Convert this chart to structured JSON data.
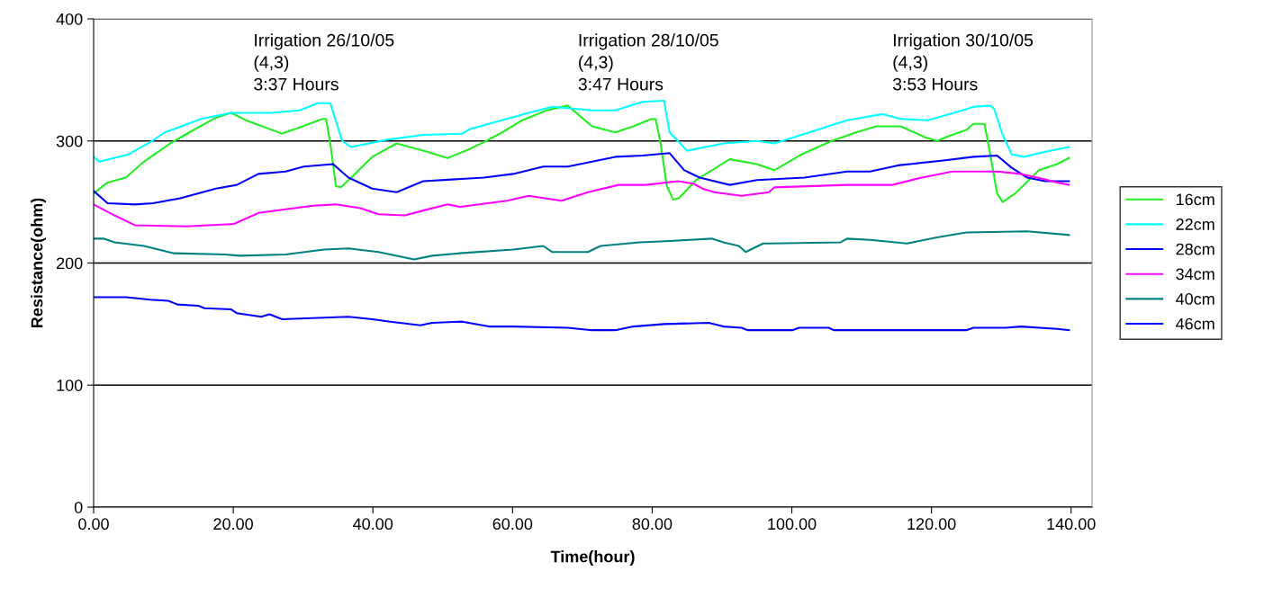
{
  "chart_data": {
    "type": "line",
    "xlabel": "Time(hour)",
    "ylabel": "Resistance(ohm)",
    "xlim": [
      0,
      143
    ],
    "xticks": [
      {
        "value": 0,
        "label": "0.00"
      },
      {
        "value": 20,
        "label": "20.00"
      },
      {
        "value": 40,
        "label": "40.00"
      },
      {
        "value": 60,
        "label": "60.00"
      },
      {
        "value": 80,
        "label": "80.00"
      },
      {
        "value": 100,
        "label": "100.00"
      },
      {
        "value": 120,
        "label": "120.00"
      },
      {
        "value": 140,
        "label": "140.00"
      }
    ],
    "ylim": [
      0,
      400
    ],
    "yticks": [
      0,
      100,
      200,
      300,
      400
    ],
    "grid": "y",
    "legend": "right",
    "line_style": "solid",
    "marker": "none",
    "annotations": [
      "Irrigation 26/10/05\n(4,3)\n3:37 Hours",
      "Irrigation 28/10/05\n(4,3)\n3:47 Hours",
      "Irrigation 30/10/05\n(4,3)\n3:53 Hours"
    ],
    "series": [
      {
        "name": "16cm",
        "color": "#22ee22",
        "x": [
          0,
          2,
          4.6,
          7.2,
          11,
          13.7,
          17.5,
          19.7,
          21.8,
          27,
          29.5,
          32.8,
          33.3,
          33.9,
          34.7,
          35.4,
          36.9,
          39.9,
          43.4,
          47.2,
          50.7,
          53.7,
          55.9,
          58.5,
          61.4,
          64.9,
          67.9,
          71.4,
          74.7,
          77.3,
          79.9,
          80.5,
          81.2,
          82.1,
          83,
          83.8,
          86.3,
          91.1,
          95,
          97.5,
          101.4,
          105.7,
          109.2,
          112.1,
          115.6,
          119.1,
          120.8,
          122.5,
          125,
          126,
          127.6,
          128.3,
          129.4,
          130.2,
          132,
          135.4,
          138,
          139.7
        ],
        "values": [
          257,
          266,
          270,
          283,
          298,
          307,
          319,
          323,
          317,
          306,
          311,
          318,
          318,
          298,
          263,
          262,
          270,
          287,
          298,
          292,
          286,
          293,
          299,
          307,
          317,
          325,
          329,
          312,
          307,
          312,
          318,
          318,
          298,
          263,
          252,
          253,
          268,
          285,
          281,
          276,
          289,
          300,
          307,
          312,
          312,
          303,
          300,
          304,
          309,
          314,
          314,
          293,
          257,
          250,
          257,
          276,
          281,
          286
        ]
      },
      {
        "name": "22cm",
        "color": "#00ffff",
        "x": [
          0,
          0.8,
          5,
          8.1,
          10.2,
          15.4,
          19.7,
          25.3,
          29.5,
          32.1,
          33.9,
          35.6,
          36.9,
          42,
          47.2,
          52.8,
          54,
          62.3,
          65.7,
          71.4,
          74.7,
          78.6,
          81.7,
          82.5,
          85,
          90.2,
          95,
          97.5,
          103.6,
          107.9,
          113,
          115.6,
          119.5,
          125,
          126,
          128.5,
          129,
          130.2,
          131.5,
          133.3,
          135.4,
          139.7
        ],
        "values": [
          287,
          283,
          289,
          299,
          307,
          318,
          323,
          323,
          325,
          331,
          331,
          300,
          295,
          301,
          305,
          306,
          310,
          323,
          328,
          325,
          325,
          332,
          333,
          307,
          292,
          298,
          300,
          298,
          309,
          317,
          322,
          318,
          317,
          326,
          328,
          329,
          326,
          305,
          289,
          287,
          290,
          295
        ]
      },
      {
        "name": "28cm",
        "color": "#0000ff",
        "x": [
          0,
          2,
          5.9,
          8.5,
          12.4,
          17.5,
          20.5,
          23.6,
          27.5,
          30.1,
          34.3,
          36.5,
          39.9,
          43.4,
          47.2,
          55.9,
          60.1,
          64.4,
          67.9,
          71.4,
          74.7,
          78.6,
          82.5,
          84.6,
          86.8,
          91.1,
          95,
          101.8,
          107.9,
          111.2,
          115.2,
          121.7,
          126,
          129.4,
          131.5,
          133.7,
          136.3,
          139.7
        ],
        "values": [
          259,
          249,
          248,
          249,
          253,
          261,
          264,
          273,
          275,
          279,
          281,
          270,
          261,
          258,
          267,
          270,
          273,
          279,
          279,
          283,
          287,
          288,
          290,
          276,
          270,
          264,
          268,
          270,
          275,
          275,
          280,
          284,
          287,
          288,
          278,
          270,
          267,
          267
        ]
      },
      {
        "name": "34cm",
        "color": "#ff00ff",
        "x": [
          0,
          3,
          5.9,
          13.3,
          20.1,
          23.6,
          27.5,
          31.4,
          34.7,
          38.2,
          40.8,
          44.6,
          47.2,
          50.7,
          52.5,
          59.2,
          62.3,
          67,
          70.8,
          75.2,
          79.1,
          83.7,
          85.9,
          87.2,
          88.9,
          92.8,
          96.7,
          97.5,
          107.9,
          114.4,
          118.6,
          123,
          129.4,
          132.8,
          135.9,
          138,
          139.7
        ],
        "values": [
          248,
          239,
          231,
          230,
          232,
          241,
          244,
          247,
          248,
          245,
          240,
          239,
          243,
          248,
          246,
          251,
          255,
          251,
          258,
          264,
          264,
          267,
          265,
          261,
          258,
          255,
          258,
          262,
          264,
          264,
          270,
          275,
          275,
          273,
          269,
          266,
          264
        ]
      },
      {
        "name": "40cm",
        "color": "#008080",
        "x": [
          0,
          1.4,
          3,
          7.2,
          11.5,
          18.8,
          21,
          27.5,
          33,
          36.5,
          40.8,
          45.9,
          48.5,
          52.4,
          60.1,
          64.4,
          65.7,
          70.8,
          72.6,
          78.2,
          82.5,
          88.5,
          90.2,
          92.4,
          93.4,
          95.9,
          97,
          107,
          107.9,
          111.2,
          116.5,
          120.8,
          125,
          133.7,
          139.7
        ],
        "values": [
          220,
          220,
          217,
          214,
          208,
          207,
          206,
          207,
          211,
          212,
          209,
          203,
          206,
          208,
          211,
          214,
          209,
          209,
          214,
          217,
          218,
          220,
          217,
          214,
          209,
          216,
          216,
          217,
          220,
          219,
          216,
          221,
          225,
          226,
          223
        ]
      },
      {
        "name": "46cm",
        "color": "#0000ff",
        "x": [
          0,
          4.6,
          8.1,
          10.7,
          12,
          15,
          15.9,
          19.7,
          20.5,
          24,
          25.2,
          27,
          36.5,
          39.9,
          42.5,
          46.8,
          48.5,
          52.8,
          56.6,
          60,
          67.9,
          71.4,
          74.7,
          77.3,
          81.7,
          88.1,
          90.2,
          92.8,
          93.7,
          100.1,
          101,
          105.3,
          106,
          125,
          126,
          130.6,
          132.8,
          138,
          139.7
        ],
        "values": [
          172,
          172,
          170,
          169,
          166,
          165,
          163,
          162,
          159,
          156,
          158,
          154,
          156,
          154,
          152,
          149,
          151,
          152,
          148,
          148,
          147,
          145,
          145,
          148,
          150,
          151,
          148,
          147,
          145,
          145,
          147,
          147,
          145,
          145,
          147,
          147,
          148,
          146,
          145
        ]
      }
    ]
  }
}
